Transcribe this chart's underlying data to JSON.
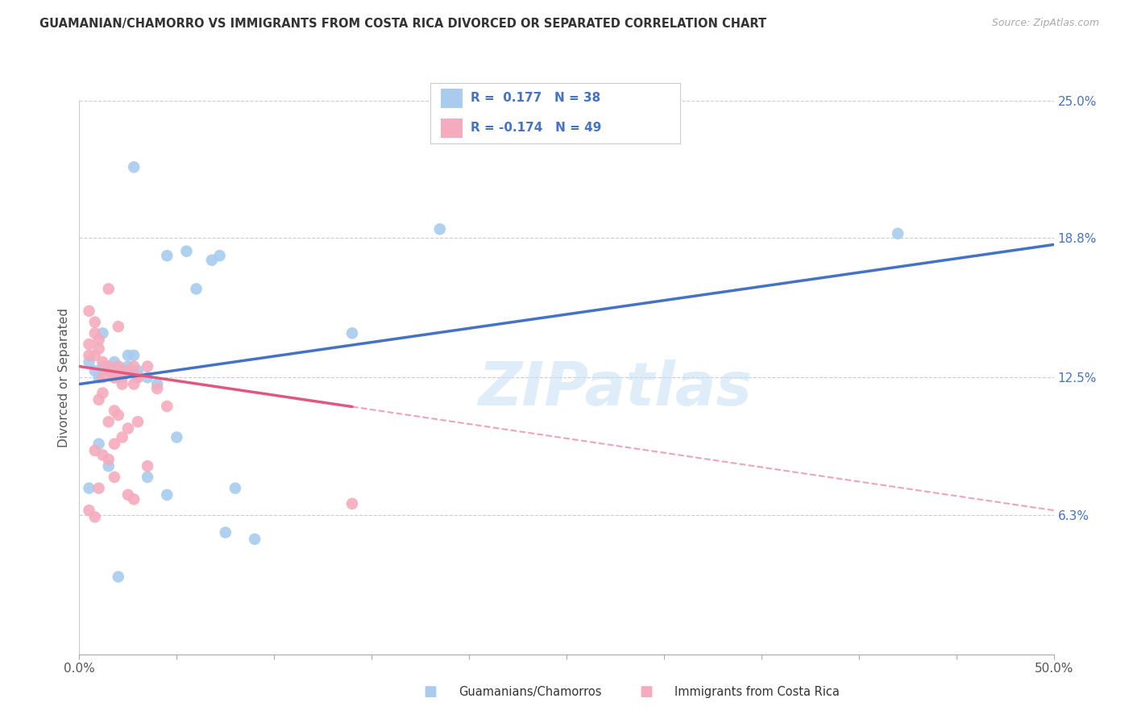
{
  "title": "GUAMANIAN/CHAMORRO VS IMMIGRANTS FROM COSTA RICA DIVORCED OR SEPARATED CORRELATION CHART",
  "source": "Source: ZipAtlas.com",
  "ylabel": "Divorced or Separated",
  "x_min": 0.0,
  "x_max": 50.0,
  "y_min": 0.0,
  "y_max": 25.0,
  "y_ticks": [
    6.3,
    12.5,
    18.8,
    25.0
  ],
  "y_tick_labels": [
    "6.3%",
    "12.5%",
    "18.8%",
    "25.0%"
  ],
  "blue_R": 0.177,
  "blue_N": 38,
  "pink_R": -0.174,
  "pink_N": 49,
  "blue_color": "#A8CBEE",
  "blue_line_color": "#4472C4",
  "pink_color": "#F4ABBE",
  "pink_line_color": "#E05880",
  "watermark": "ZIPatlas",
  "legend_label_blue": "Guamanians/Chamorros",
  "legend_label_pink": "Immigrants from Costa Rica",
  "blue_line_x0": 0.0,
  "blue_line_y0": 12.2,
  "blue_line_x1": 50.0,
  "blue_line_y1": 18.5,
  "pink_line_x0": 0.0,
  "pink_line_y0": 13.0,
  "pink_line_x1": 50.0,
  "pink_line_y1": 6.5,
  "pink_solid_end": 14.0,
  "blue_scatter_x": [
    2.5,
    2.8,
    6.0,
    4.5,
    5.5,
    6.8,
    7.2,
    1.2,
    1.8,
    2.0,
    2.5,
    1.5,
    0.5,
    0.8,
    1.0,
    1.2,
    1.5,
    1.8,
    2.0,
    2.2,
    2.5,
    2.8,
    3.0,
    3.5,
    4.0,
    14.0,
    18.5,
    1.0,
    1.5,
    0.5,
    8.0,
    5.0,
    4.5,
    7.5,
    9.0,
    3.5,
    2.0,
    42.0
  ],
  "blue_scatter_y": [
    13.5,
    22.0,
    16.5,
    18.0,
    18.2,
    17.8,
    18.0,
    14.5,
    12.5,
    13.0,
    12.8,
    13.0,
    13.2,
    12.8,
    12.5,
    13.0,
    12.8,
    13.2,
    12.5,
    12.8,
    13.0,
    13.5,
    12.8,
    12.5,
    12.2,
    14.5,
    19.2,
    9.5,
    8.5,
    7.5,
    7.5,
    9.8,
    7.2,
    5.5,
    5.2,
    8.0,
    3.5,
    19.0
  ],
  "pink_scatter_x": [
    0.5,
    0.8,
    1.0,
    1.2,
    1.5,
    1.8,
    2.0,
    2.2,
    2.5,
    2.8,
    3.0,
    3.5,
    4.0,
    0.5,
    0.8,
    1.0,
    1.2,
    1.5,
    1.8,
    2.0,
    2.2,
    2.5,
    2.8,
    3.0,
    0.5,
    0.8,
    1.0,
    1.2,
    1.5,
    1.8,
    2.0,
    2.5,
    3.0,
    1.5,
    2.0,
    4.5,
    2.2,
    1.8,
    0.8,
    1.2,
    3.5,
    1.0,
    1.8,
    2.5,
    14.0,
    2.8,
    1.5,
    0.5,
    0.8
  ],
  "pink_scatter_y": [
    13.5,
    14.5,
    13.8,
    13.2,
    12.8,
    12.5,
    13.0,
    12.5,
    12.8,
    12.2,
    12.5,
    13.0,
    12.0,
    14.0,
    13.5,
    14.2,
    12.5,
    13.0,
    12.8,
    12.5,
    12.2,
    12.8,
    13.0,
    12.5,
    15.5,
    15.0,
    11.5,
    11.8,
    10.5,
    11.0,
    10.8,
    10.2,
    10.5,
    16.5,
    14.8,
    11.2,
    9.8,
    9.5,
    9.2,
    9.0,
    8.5,
    7.5,
    8.0,
    7.2,
    6.8,
    7.0,
    8.8,
    6.5,
    6.2
  ]
}
